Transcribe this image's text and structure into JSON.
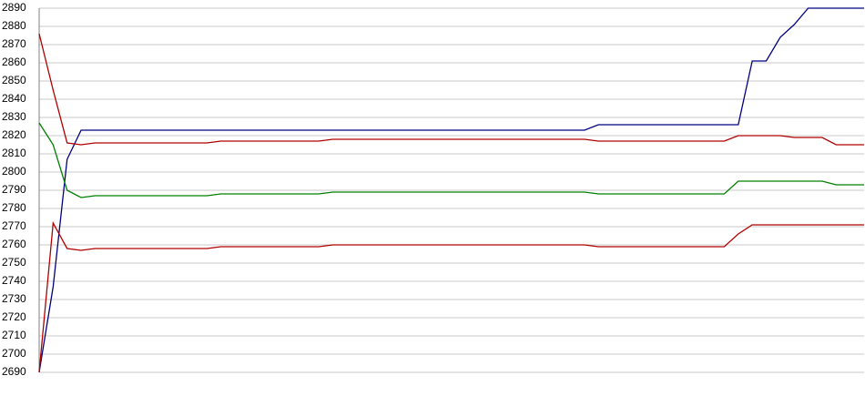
{
  "chart_data": {
    "type": "line",
    "categories": [
      null,
      null,
      null,
      null,
      null,
      null,
      null,
      null,
      null,
      null,
      null,
      null,
      null,
      null,
      null,
      null,
      null,
      null,
      null,
      null,
      null,
      null,
      null,
      null,
      null,
      null,
      null,
      null,
      null,
      null,
      null,
      null,
      null,
      null,
      null,
      null,
      null,
      null,
      null,
      null,
      null,
      null,
      null,
      null,
      null,
      null,
      null,
      null,
      null,
      null,
      null,
      null,
      null,
      null,
      null,
      null,
      null,
      null,
      null,
      null
    ],
    "series": [
      {
        "color": "#000080",
        "values": [
          2690,
          2737,
          2807,
          2823,
          2823,
          2823,
          2823,
          2823,
          2823,
          2823,
          2823,
          2823,
          2823,
          2823,
          2823,
          2823,
          2823,
          2823,
          2823,
          2823,
          2823,
          2823,
          2823,
          2823,
          2823,
          2823,
          2823,
          2823,
          2823,
          2823,
          2823,
          2823,
          2823,
          2823,
          2823,
          2823,
          2823,
          2823,
          2823,
          2823,
          2826,
          2826,
          2826,
          2826,
          2826,
          2826,
          2826,
          2826,
          2826,
          2826,
          2826,
          2861,
          2861,
          2874,
          2881,
          2890,
          2890,
          2890,
          2890,
          2890
        ]
      },
      {
        "color": "#b00000",
        "values": [
          2876,
          2845,
          2816,
          2815,
          2816,
          2816,
          2816,
          2816,
          2816,
          2816,
          2816,
          2816,
          2816,
          2817,
          2817,
          2817,
          2817,
          2817,
          2817,
          2817,
          2817,
          2818,
          2818,
          2818,
          2818,
          2818,
          2818,
          2818,
          2818,
          2818,
          2818,
          2818,
          2818,
          2818,
          2818,
          2818,
          2818,
          2818,
          2818,
          2818,
          2817,
          2817,
          2817,
          2817,
          2817,
          2817,
          2817,
          2817,
          2817,
          2817,
          2820,
          2820,
          2820,
          2820,
          2819,
          2819,
          2819,
          2815,
          2815,
          2815
        ]
      },
      {
        "color": "#008000",
        "values": [
          2827,
          2815,
          2790,
          2786,
          2787,
          2787,
          2787,
          2787,
          2787,
          2787,
          2787,
          2787,
          2787,
          2788,
          2788,
          2788,
          2788,
          2788,
          2788,
          2788,
          2788,
          2789,
          2789,
          2789,
          2789,
          2789,
          2789,
          2789,
          2789,
          2789,
          2789,
          2789,
          2789,
          2789,
          2789,
          2789,
          2789,
          2789,
          2789,
          2789,
          2788,
          2788,
          2788,
          2788,
          2788,
          2788,
          2788,
          2788,
          2788,
          2788,
          2795,
          2795,
          2795,
          2795,
          2795,
          2795,
          2795,
          2793,
          2793,
          2793
        ]
      },
      {
        "color": "#b00000",
        "values": [
          2690,
          2772,
          2758,
          2757,
          2758,
          2758,
          2758,
          2758,
          2758,
          2758,
          2758,
          2758,
          2758,
          2759,
          2759,
          2759,
          2759,
          2759,
          2759,
          2759,
          2759,
          2760,
          2760,
          2760,
          2760,
          2760,
          2760,
          2760,
          2760,
          2760,
          2760,
          2760,
          2760,
          2760,
          2760,
          2760,
          2760,
          2760,
          2760,
          2760,
          2759,
          2759,
          2759,
          2759,
          2759,
          2759,
          2759,
          2759,
          2759,
          2759,
          2766,
          2771,
          2771,
          2771,
          2771,
          2771,
          2771,
          2771,
          2771,
          2771
        ]
      }
    ],
    "ylim": [
      2690,
      2890
    ],
    "yticks": [
      2690,
      2700,
      2710,
      2720,
      2730,
      2740,
      2750,
      2760,
      2770,
      2780,
      2790,
      2800,
      2810,
      2820,
      2830,
      2840,
      2850,
      2860,
      2870,
      2880,
      2890
    ],
    "grid": true
  }
}
